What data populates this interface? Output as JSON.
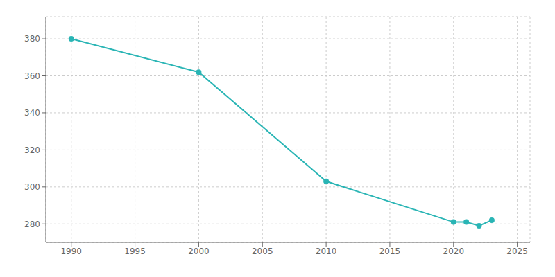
{
  "chart_data": {
    "type": "line",
    "x": [
      1990,
      2000,
      2010,
      2020,
      2021,
      2022,
      2023
    ],
    "values": [
      380,
      362,
      303,
      281,
      281,
      279,
      282
    ],
    "color": "#2ab5b5",
    "marker": "circle",
    "xlim": [
      1988,
      2026
    ],
    "ylim": [
      270,
      392
    ],
    "xticks": [
      1990,
      1995,
      2000,
      2005,
      2010,
      2015,
      2020,
      2025
    ],
    "yticks": [
      280,
      300,
      320,
      340,
      360,
      380
    ],
    "grid": true
  }
}
